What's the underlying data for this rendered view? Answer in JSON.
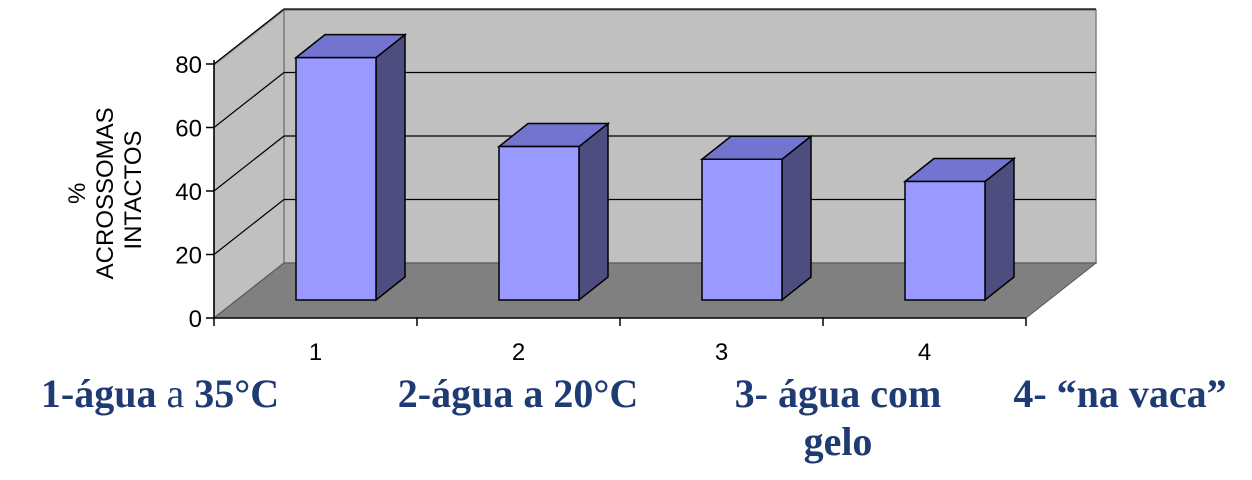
{
  "chart_data": {
    "type": "bar",
    "categories": [
      "1",
      "2",
      "3",
      "4"
    ],
    "values": [
      82,
      54,
      50,
      43
    ],
    "ylabel_lines": [
      "%",
      "ACROSSOMAS",
      "INTACTOS"
    ],
    "yticks": [
      "0",
      "20",
      "40",
      "60",
      "80"
    ],
    "ylim": [
      0,
      90
    ],
    "grid": true,
    "colors": {
      "bar_front": "#9999ff",
      "bar_side": "#4d4d80",
      "bar_top": "#7373d0",
      "wall": "#c0c0c0",
      "floor": "#808080"
    }
  },
  "captions": {
    "c1_bold_a": "1-água",
    "c1_normal": " a ",
    "c1_bold_b": "35°C",
    "c2": "2-água a 20°C",
    "c3_line1": "3- água com",
    "c3_line2": "gelo",
    "c4": "4- “na vaca”"
  }
}
